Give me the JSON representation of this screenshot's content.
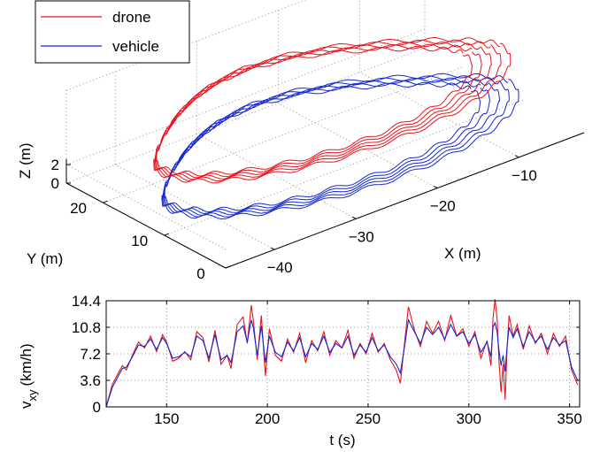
{
  "colors": {
    "drone": "#e8141e",
    "vehicle": "#1428d2",
    "axis": "#000000",
    "grid": "#7a7a7a"
  },
  "chart_data": [
    {
      "type": "line",
      "subtype": "3d-trajectory",
      "series": [
        {
          "name": "drone",
          "color_key": "drone"
        },
        {
          "name": "vehicle",
          "color_key": "vehicle"
        }
      ],
      "legend": "top-left",
      "grid": true,
      "xlabel": "X (m)",
      "ylabel": "Y (m)",
      "zlabel": "Z (m)",
      "xticks": [
        "−40",
        "−30",
        "−20",
        "−10"
      ],
      "yticks": [
        "0",
        "10",
        "20"
      ],
      "zticks": [
        "0",
        "2"
      ],
      "xlim": [
        -46,
        -2
      ],
      "ylim": [
        0,
        26
      ],
      "zlim": [
        0,
        2
      ]
    },
    {
      "type": "line",
      "series": [
        {
          "name": "drone",
          "color_key": "drone",
          "t": [
            120,
            123,
            126,
            128,
            130,
            133,
            136,
            139,
            142,
            145,
            148,
            150,
            153,
            156,
            159,
            162,
            165,
            168,
            171,
            174,
            177,
            180,
            182,
            185,
            188,
            190,
            192,
            193,
            195,
            197,
            199,
            201,
            204,
            207,
            210,
            213,
            216,
            219,
            222,
            225,
            228,
            231,
            234,
            237,
            240,
            243,
            246,
            249,
            252,
            255,
            258,
            261,
            264,
            266,
            268,
            270,
            273,
            276,
            279,
            282,
            285,
            288,
            291,
            294,
            297,
            300,
            303,
            306,
            309,
            311,
            312,
            313,
            314,
            315,
            316,
            317,
            318,
            319,
            320,
            322,
            324,
            327,
            330,
            333,
            336,
            339,
            342,
            345,
            348,
            351,
            354
          ],
          "v": [
            0,
            3.0,
            4.6,
            5.6,
            5.0,
            7.0,
            8.8,
            8.0,
            9.6,
            7.5,
            9.8,
            8.8,
            6.2,
            6.6,
            7.5,
            6.4,
            10.2,
            9.4,
            6.1,
            10.4,
            5.8,
            7.0,
            5.2,
            11.2,
            12.2,
            8.6,
            13.8,
            11.8,
            6.4,
            12.4,
            4.2,
            10.6,
            7.0,
            6.2,
            9.2,
            7.4,
            10.0,
            6.0,
            9.0,
            7.6,
            10.2,
            7.0,
            9.0,
            8.0,
            10.4,
            6.6,
            8.6,
            7.2,
            10.0,
            7.4,
            8.6,
            6.4,
            5.0,
            3.2,
            8.4,
            13.6,
            10.4,
            8.2,
            11.6,
            10.0,
            11.6,
            9.0,
            12.4,
            9.6,
            10.6,
            8.2,
            10.2,
            6.6,
            9.0,
            5.6,
            12.0,
            14.6,
            12.0,
            6.0,
            2.0,
            5.8,
            1.0,
            8.0,
            12.4,
            9.6,
            11.2,
            7.8,
            11.0,
            8.6,
            10.0,
            7.2,
            10.0,
            8.2,
            9.6,
            5.0,
            3.0
          ]
        },
        {
          "name": "vehicle",
          "color_key": "vehicle",
          "t": [
            120,
            123,
            126,
            128,
            130,
            133,
            136,
            139,
            142,
            145,
            148,
            150,
            153,
            156,
            159,
            162,
            165,
            168,
            171,
            174,
            177,
            180,
            182,
            185,
            188,
            190,
            192,
            193,
            195,
            197,
            199,
            201,
            204,
            207,
            210,
            213,
            216,
            219,
            222,
            225,
            228,
            231,
            234,
            237,
            240,
            243,
            246,
            249,
            252,
            255,
            258,
            261,
            264,
            266,
            268,
            270,
            273,
            276,
            279,
            282,
            285,
            288,
            291,
            294,
            297,
            300,
            303,
            306,
            309,
            311,
            312,
            313,
            314,
            315,
            316,
            317,
            318,
            319,
            320,
            322,
            324,
            327,
            330,
            333,
            336,
            339,
            342,
            345,
            348,
            351,
            354
          ],
          "v": [
            0,
            2.6,
            4.2,
            5.2,
            5.4,
            6.8,
            8.4,
            8.2,
            9.2,
            7.8,
            9.4,
            8.6,
            6.6,
            6.8,
            7.4,
            6.8,
            9.6,
            9.0,
            6.6,
            9.8,
            6.4,
            7.0,
            6.0,
            10.2,
            11.0,
            8.8,
            11.8,
            10.8,
            7.0,
            11.0,
            6.0,
            9.6,
            7.4,
            6.8,
            8.8,
            7.6,
            9.4,
            6.8,
            8.6,
            7.8,
            9.6,
            7.4,
            8.6,
            8.0,
            9.6,
            7.0,
            8.4,
            7.4,
            9.4,
            7.6,
            8.4,
            6.8,
            5.8,
            4.6,
            8.0,
            11.8,
            10.2,
            8.6,
            10.8,
            9.8,
            10.8,
            9.2,
            11.2,
            9.6,
            10.2,
            8.6,
            9.8,
            7.4,
            8.8,
            6.8,
            10.8,
            11.4,
            10.2,
            7.6,
            5.6,
            7.0,
            4.8,
            8.2,
            10.8,
            9.4,
            10.6,
            8.2,
            10.2,
            8.8,
            9.6,
            7.8,
            9.4,
            8.4,
            9.0,
            5.4,
            3.6
          ]
        }
      ],
      "xlabel": "t (s)",
      "ylabel_main": "v",
      "ylabel_sub": "xy",
      "ylabel_unit": "(km/h)",
      "xticks": [
        "150",
        "200",
        "250",
        "300",
        "350"
      ],
      "yticks": [
        "0",
        "3.6",
        "7.2",
        "10.8",
        "14.4"
      ],
      "xlim": [
        120,
        355
      ],
      "ylim": [
        0,
        14.4
      ],
      "grid": true
    }
  ]
}
